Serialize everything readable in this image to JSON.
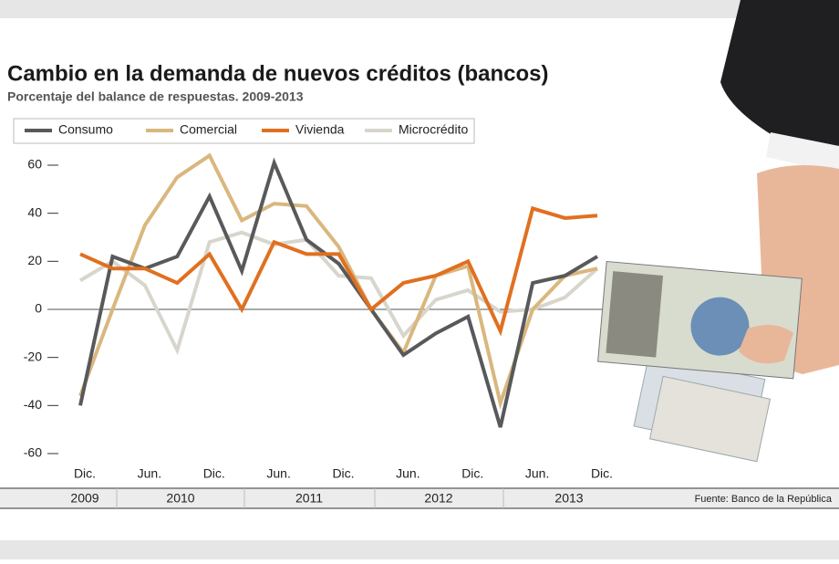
{
  "chart_data": {
    "type": "line",
    "title": "Cambio en la demanda de nuevos créditos (bancos)",
    "subtitle": "Porcentaje del balance de respuestas. 2009-2013",
    "source": "Fuente: Banco de la República",
    "categories": [
      "Dic.",
      null,
      "Jun.",
      null,
      "Dic.",
      null,
      "Jun.",
      null,
      "Dic.",
      null,
      "Jun.",
      null,
      "Dic.",
      null,
      "Jun.",
      null,
      "Dic."
    ],
    "year_labels": [
      "2009",
      "2010",
      "2011",
      "2012",
      "2013"
    ],
    "series": [
      {
        "name": "Consumo",
        "color": "#58595b",
        "values": [
          -40,
          22,
          17,
          22,
          47,
          16,
          61,
          29,
          19,
          0,
          -19,
          -10,
          -3,
          -49,
          11,
          14,
          22
        ]
      },
      {
        "name": "Comercial",
        "color": "#d9b77e",
        "values": [
          -36,
          0,
          35,
          55,
          64,
          37,
          44,
          43,
          26,
          0,
          -18,
          14,
          18,
          -39,
          0,
          14,
          17
        ]
      },
      {
        "name": "Vivienda",
        "color": "#e07020",
        "values": [
          23,
          17,
          17,
          11,
          23,
          0,
          28,
          23,
          23,
          0,
          11,
          14,
          20,
          -9,
          42,
          38,
          39
        ]
      },
      {
        "name": "Microcrédito",
        "color": "#d8d6cc",
        "values": [
          12,
          20,
          10,
          -17,
          28,
          32,
          27,
          29,
          14,
          13,
          -11,
          4,
          8,
          -1,
          0,
          5,
          17
        ]
      }
    ],
    "ylim": [
      -60,
      60
    ],
    "yticks": [
      -60,
      -40,
      -20,
      0,
      20,
      40,
      60
    ]
  }
}
